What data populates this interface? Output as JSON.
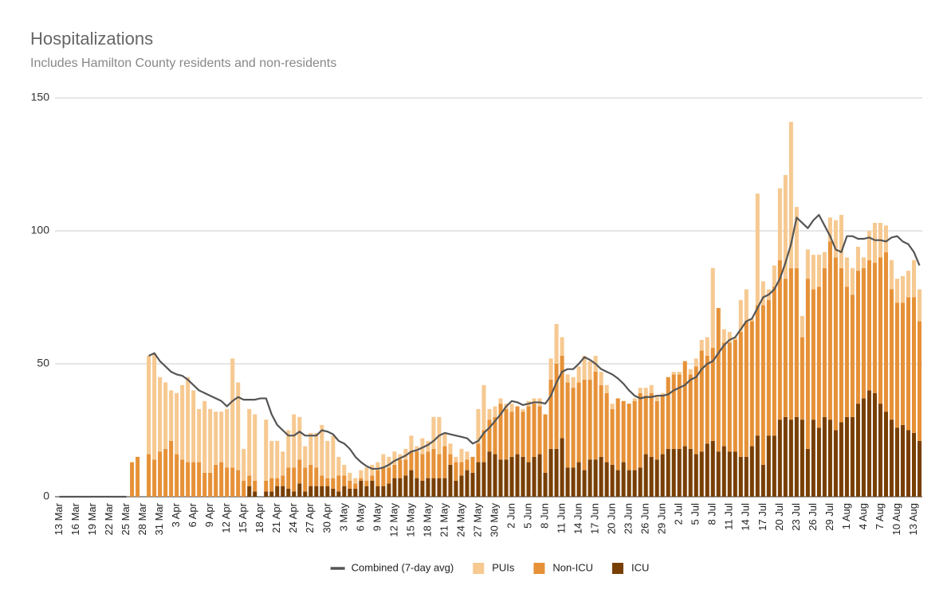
{
  "chart_data": {
    "type": "bar",
    "stacked": true,
    "title": "Hospitalizations",
    "subtitle": "Includes Hamilton County residents and non-residents",
    "categories": [
      "13 Mar",
      null,
      null,
      "16 Mar",
      null,
      null,
      "19 Mar",
      null,
      null,
      "22 Mar",
      null,
      null,
      "25 Mar",
      null,
      null,
      "28 Mar",
      null,
      null,
      "31 Mar",
      null,
      null,
      "3 Apr",
      null,
      null,
      "6 Apr",
      null,
      null,
      "9 Apr",
      null,
      null,
      "12 Apr",
      null,
      null,
      "15 Apr",
      null,
      null,
      "18 Apr",
      null,
      null,
      "21 Apr",
      null,
      null,
      "24 Apr",
      null,
      null,
      "27 Apr",
      null,
      null,
      "30 Apr",
      null,
      null,
      "3 May",
      null,
      null,
      "6 May",
      null,
      null,
      "9 May",
      null,
      null,
      "12 May",
      null,
      null,
      "15 May",
      null,
      null,
      "18 May",
      null,
      null,
      "21 May",
      null,
      null,
      "24 May",
      null,
      null,
      "27 May",
      null,
      null,
      "30 May",
      null,
      null,
      "2 Jun",
      null,
      null,
      "5 Jun",
      null,
      null,
      "8 Jun",
      null,
      null,
      "11 Jun",
      null,
      null,
      "14 Jun",
      null,
      null,
      "17 Jun",
      null,
      null,
      "20 Jun",
      null,
      null,
      "23 Jun",
      null,
      null,
      "26 Jun",
      null,
      null,
      "29 Jun",
      null,
      null,
      "2 Jul",
      null,
      null,
      "5 Jul",
      null,
      null,
      "8 Jul",
      null,
      null,
      "11 Jul",
      null,
      null,
      "14 Jul",
      null,
      null,
      "17 Jul",
      null,
      null,
      "20 Jul",
      null,
      null,
      "23 Jul",
      null,
      null,
      "26 Jul",
      null,
      null,
      "29 Jul",
      null,
      null,
      "1 Aug",
      null,
      null,
      "4 Aug",
      null,
      null,
      "7 Aug",
      null,
      null,
      "10 Aug",
      null,
      null,
      "13 Aug",
      null
    ],
    "series": [
      {
        "name": "Combined (7-day avg)",
        "type": "line",
        "color": "#555555",
        "values": [
          0,
          0,
          0,
          0,
          0,
          0,
          0,
          0,
          0,
          0,
          0,
          0,
          0,
          null,
          null,
          null,
          53,
          54,
          51,
          49,
          47,
          46,
          45.5,
          44,
          42,
          40,
          39,
          38,
          37,
          36,
          34,
          36,
          37.5,
          36.5,
          36.5,
          36.5,
          37,
          37,
          31,
          27,
          25,
          23,
          23,
          24.5,
          23,
          23,
          23,
          25,
          24.5,
          23.5,
          21,
          20,
          18,
          15,
          13,
          11.5,
          10.5,
          10.5,
          11,
          12,
          13.5,
          14.5,
          15.5,
          17,
          17.5,
          18.5,
          19.5,
          21,
          23,
          24,
          23.5,
          23,
          22.5,
          22,
          20,
          21,
          24,
          26,
          28.5,
          31,
          34,
          36,
          35.5,
          34.5,
          35,
          35.5,
          35.5,
          35,
          38,
          43,
          47,
          48,
          48,
          50,
          52.5,
          51.5,
          50,
          48,
          47,
          46,
          44.5,
          42.5,
          40,
          38,
          37,
          37.5,
          37.5,
          38,
          38,
          38.5,
          40,
          41,
          42,
          44,
          45,
          48,
          50,
          51,
          54,
          57,
          59,
          60,
          63,
          66,
          67,
          71,
          75,
          76,
          78,
          82,
          88,
          95,
          105,
          103,
          101,
          104,
          106,
          102,
          98,
          93,
          92,
          98,
          98,
          97,
          97,
          97.5,
          96.5,
          96.5,
          96,
          97.5,
          98,
          96,
          95,
          92,
          87
        ]
      },
      {
        "name": "PUIs",
        "type": "bar",
        "color": "#f6c991",
        "values": [
          0,
          0,
          0,
          0,
          0,
          0,
          0,
          0,
          0,
          0,
          0,
          0,
          0,
          0,
          0,
          0,
          37,
          40,
          28,
          25,
          19,
          23,
          28,
          32,
          27,
          20,
          27,
          24,
          20,
          19,
          22,
          41,
          33,
          12,
          25,
          25,
          0,
          23,
          14,
          14,
          9,
          14,
          20,
          16,
          8,
          12,
          13,
          19,
          14,
          16,
          7,
          4,
          3,
          2,
          3,
          5,
          4,
          3,
          5,
          4,
          5,
          2,
          4,
          6,
          2,
          6,
          4,
          12,
          14,
          5,
          4,
          2,
          5,
          3,
          0,
          13,
          17,
          4,
          4,
          2,
          2,
          3,
          0,
          1,
          2,
          2,
          3,
          0,
          8,
          15,
          7,
          3,
          4,
          6,
          9,
          7,
          6,
          5,
          3,
          2,
          0,
          0,
          0,
          1,
          2,
          3,
          3,
          2,
          1,
          0,
          1,
          1,
          0,
          2,
          3,
          4,
          7,
          30,
          0,
          5,
          4,
          1,
          12,
          12,
          1,
          42,
          9,
          4,
          8,
          27,
          39,
          55,
          23,
          8,
          11,
          13,
          12,
          6,
          9,
          14,
          20,
          11,
          10,
          9,
          4,
          11,
          15,
          13,
          10,
          11,
          9,
          10,
          10,
          14,
          12
        ]
      },
      {
        "name": "Non-ICU",
        "type": "bar",
        "color": "#e69138",
        "values": [
          0,
          0,
          0,
          0,
          0,
          0,
          0,
          0,
          0,
          0,
          0,
          0,
          0,
          13,
          15,
          0,
          16,
          14,
          17,
          18,
          21,
          16,
          14,
          13,
          13,
          13,
          9,
          9,
          12,
          13,
          11,
          11,
          10,
          6,
          4,
          4,
          0,
          4,
          5,
          3,
          4,
          8,
          9,
          9,
          9,
          8,
          7,
          4,
          3,
          4,
          6,
          4,
          3,
          2,
          1,
          2,
          2,
          6,
          7,
          6,
          5,
          7,
          6,
          7,
          10,
          10,
          10,
          11,
          9,
          12,
          4,
          7,
          5,
          4,
          6,
          7,
          12,
          12,
          14,
          21,
          19,
          17,
          18,
          17,
          21,
          20,
          18,
          22,
          26,
          32,
          31,
          32,
          30,
          30,
          34,
          30,
          33,
          27,
          26,
          21,
          27,
          23,
          25,
          26,
          28,
          22,
          24,
          22,
          22,
          27,
          28,
          28,
          32,
          28,
          33,
          38,
          33,
          35,
          54,
          39,
          41,
          42,
          47,
          51,
          47,
          49,
          60,
          51,
          56,
          60,
          52,
          57,
          56,
          31,
          64,
          49,
          53,
          56,
          67,
          65,
          58,
          49,
          46,
          50,
          49,
          49,
          49,
          55,
          60,
          49,
          47,
          46,
          50,
          51,
          45
        ]
      },
      {
        "name": "ICU",
        "type": "bar",
        "color": "#783f04",
        "values": [
          0,
          0,
          0,
          0,
          0,
          0,
          0,
          0,
          0,
          0,
          0,
          0,
          0,
          0,
          0,
          0,
          0,
          0,
          0,
          0,
          0,
          0,
          0,
          0,
          0,
          0,
          0,
          0,
          0,
          0,
          0,
          0,
          0,
          0,
          4,
          2,
          0,
          2,
          2,
          4,
          4,
          3,
          2,
          5,
          2,
          4,
          4,
          4,
          4,
          3,
          2,
          4,
          3,
          3,
          6,
          4,
          6,
          4,
          4,
          5,
          7,
          7,
          8,
          10,
          7,
          6,
          7,
          7,
          7,
          7,
          12,
          6,
          8,
          10,
          9,
          13,
          13,
          17,
          16,
          14,
          14,
          15,
          16,
          15,
          13,
          15,
          16,
          9,
          18,
          18,
          22,
          11,
          11,
          13,
          10,
          14,
          14,
          15,
          13,
          12,
          10,
          13,
          10,
          10,
          11,
          16,
          15,
          14,
          16,
          18,
          18,
          18,
          19,
          18,
          16,
          17,
          20,
          21,
          17,
          19,
          17,
          17,
          15,
          15,
          19,
          23,
          12,
          23,
          23,
          29,
          30,
          29,
          30,
          29,
          18,
          29,
          26,
          30,
          29,
          25,
          28,
          30,
          30,
          35,
          37,
          40,
          39,
          35,
          32,
          29,
          26,
          27,
          25,
          24,
          21
        ]
      }
    ],
    "ylim": [
      0,
      150
    ],
    "yticks": [
      0,
      50,
      100,
      150
    ],
    "grid": true,
    "legend": "bottom"
  }
}
